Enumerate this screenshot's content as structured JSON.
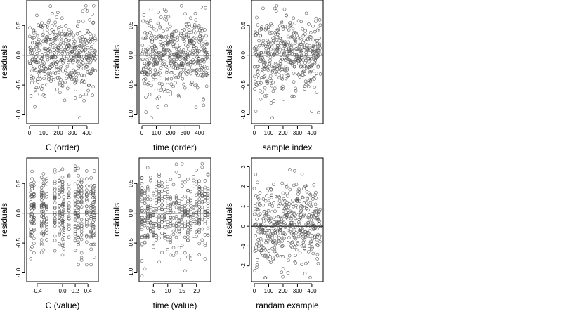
{
  "chart_data": [
    {
      "type": "scatter",
      "xlabel": "C (order)",
      "ylabel": "residuals",
      "xlim": [
        0,
        459
      ],
      "ylim": [
        -1.1,
        0.88
      ],
      "xticks": [
        0,
        100,
        200,
        300,
        400
      ],
      "xtick_labels": [
        "0",
        "100",
        "200",
        "300",
        "400"
      ],
      "yticks": [
        -1.0,
        -0.5,
        0.0,
        0.5
      ],
      "ytick_labels": [
        "-1.0",
        "-0.5",
        "0.0",
        "0.5"
      ],
      "hline": 0,
      "n_points": 460,
      "x_kind": "index",
      "y_spread": 0.33
    },
    {
      "type": "scatter",
      "xlabel": "time (order)",
      "ylabel": "residuals",
      "xlim": [
        0,
        459
      ],
      "ylim": [
        -1.1,
        0.88
      ],
      "xticks": [
        0,
        100,
        200,
        300,
        400
      ],
      "xtick_labels": [
        "0",
        "100",
        "200",
        "300",
        "400"
      ],
      "yticks": [
        -1.0,
        -0.5,
        0.0,
        0.5
      ],
      "ytick_labels": [
        "-1.0",
        "-0.5",
        "0.0",
        "0.5"
      ],
      "hline": 0,
      "n_points": 460,
      "x_kind": "index",
      "y_spread": 0.33
    },
    {
      "type": "scatter",
      "xlabel": "sample index",
      "ylabel": "residuals",
      "xlim": [
        0,
        459
      ],
      "ylim": [
        -1.1,
        0.88
      ],
      "xticks": [
        0,
        100,
        200,
        300,
        400
      ],
      "xtick_labels": [
        "0",
        "100",
        "200",
        "300",
        "400"
      ],
      "yticks": [
        -1.0,
        -0.5,
        0.0,
        0.5
      ],
      "ytick_labels": [
        "-1.0",
        "-0.5",
        "0.0",
        "0.5"
      ],
      "hline": 0,
      "n_points": 460,
      "x_kind": "index",
      "y_spread": 0.33
    },
    {
      "type": "scatter",
      "xlabel": "C (value)",
      "ylabel": "residuals",
      "xlim": [
        -0.52,
        0.52
      ],
      "ylim": [
        -1.1,
        0.88
      ],
      "xticks": [
        -0.4,
        0.0,
        0.2,
        0.4
      ],
      "xtick_labels": [
        "-0.4",
        "0.0",
        "0.2",
        "0.4"
      ],
      "yticks": [
        -1.0,
        -0.5,
        0.0,
        0.5
      ],
      "ytick_labels": [
        "-1.0",
        "-0.5",
        "0.0",
        "0.5"
      ],
      "hline": 0,
      "n_points": 460,
      "x_kind": "discrete",
      "x_levels": [
        -0.5,
        -0.48,
        -0.45,
        -0.33,
        -0.3,
        -0.25,
        -0.12,
        -0.05,
        0.0,
        0.02,
        0.1,
        0.2,
        0.25,
        0.3,
        0.38,
        0.45,
        0.48,
        0.5
      ],
      "y_spread": 0.33
    },
    {
      "type": "scatter",
      "xlabel": "time (value)",
      "ylabel": "residuals",
      "xlim": [
        1,
        24
      ],
      "ylim": [
        -1.1,
        0.88
      ],
      "xticks": [
        5,
        10,
        15,
        20
      ],
      "xtick_labels": [
        "5",
        "10",
        "15",
        "20"
      ],
      "yticks": [
        -1.0,
        -0.5,
        0.0,
        0.5
      ],
      "ytick_labels": [
        "-1.0",
        "-0.5",
        "0.0",
        "0.5"
      ],
      "hline": 0,
      "n_points": 460,
      "x_kind": "discrete",
      "x_levels": [
        1,
        2,
        3,
        4,
        5,
        6,
        7,
        8,
        9,
        10,
        11,
        12,
        13,
        14,
        15,
        16,
        17,
        18,
        19,
        20,
        21,
        22,
        23,
        24
      ],
      "y_spread": 0.33
    },
    {
      "type": "scatter",
      "xlabel": "randam example",
      "ylabel": "residuals",
      "xlim": [
        0,
        459
      ],
      "ylim": [
        -2.65,
        3.3
      ],
      "xticks": [
        0,
        100,
        200,
        300,
        400
      ],
      "xtick_labels": [
        "0",
        "100",
        "200",
        "300",
        "400"
      ],
      "yticks": [
        -2,
        -1,
        0,
        1,
        2,
        3
      ],
      "ytick_labels": [
        "-2",
        "-1",
        "0",
        "1",
        "2",
        "3"
      ],
      "hline": 0,
      "n_points": 460,
      "x_kind": "index",
      "y_spread": 1.0
    }
  ]
}
